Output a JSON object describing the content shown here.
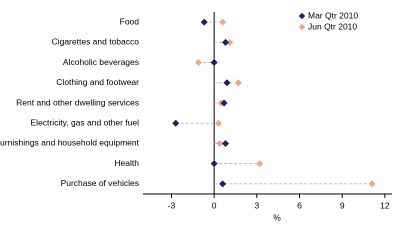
{
  "chart_data": {
    "type": "dot",
    "categories": [
      "Food",
      "Cigarettes and tobacco",
      "Alcoholic beverages",
      "Clothing and footwear",
      "Rent and other dwelling services",
      "Electricity, gas and other fuel",
      "Furnishings and household equipment",
      "Health",
      "Purchase of vehicles"
    ],
    "series": [
      {
        "name": "Mar Qtr 2010",
        "color": "#1b1f66",
        "values": [
          -0.7,
          0.8,
          0.0,
          0.9,
          0.7,
          -2.7,
          0.8,
          0.0,
          0.6
        ]
      },
      {
        "name": "Jun Qtr 2010",
        "color": "#f4a582",
        "values": [
          0.6,
          1.1,
          -1.1,
          1.7,
          0.5,
          0.3,
          0.4,
          3.2,
          11.1
        ]
      }
    ],
    "xlabel": "%",
    "xlim": [
      -5,
      12.5
    ],
    "xticks": [
      -3,
      0,
      3,
      6,
      9,
      12
    ],
    "legend": "top-right"
  }
}
